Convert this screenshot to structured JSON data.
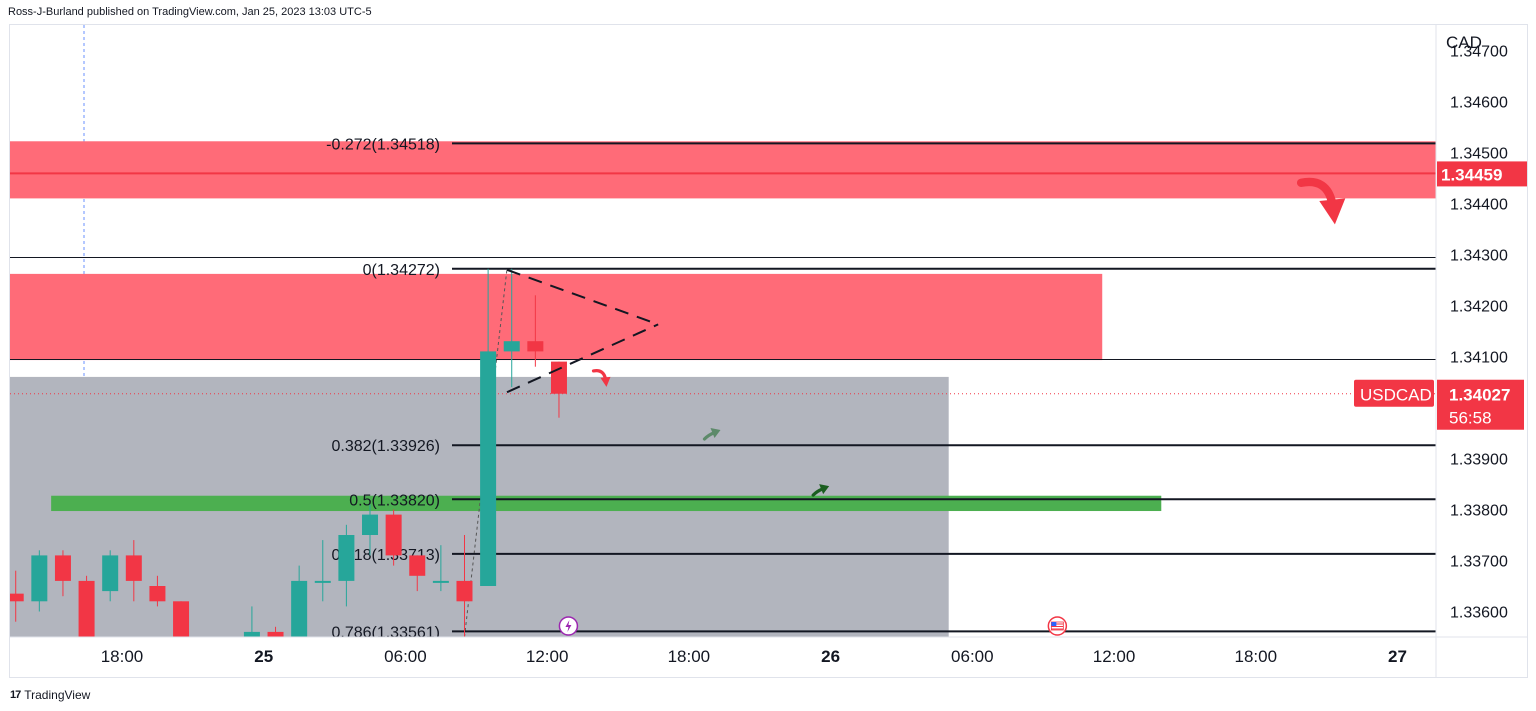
{
  "header": {
    "publisher_line": "Ross-J-Burland published on TradingView.com, Jan 25, 2023 13:03 UTC-5"
  },
  "footer": {
    "brand": "TradingView",
    "brand_mark": "17"
  },
  "colors": {
    "bull": "#26a69a",
    "bear": "#f23645",
    "resistance_zone": "#ff6b78",
    "support_line": "#4caf50",
    "gray_zone": "#b2b5be",
    "price_label": "#f23645"
  },
  "chart_data": {
    "type": "candlestick",
    "symbol": "USDCAD",
    "axis_title": "CAD",
    "last_price": "1.34027",
    "countdown": "56:58",
    "alert_price": "1.34459",
    "y_ticks": [
      "1.34700",
      "1.34600",
      "1.34500",
      "1.34400",
      "1.34300",
      "1.34200",
      "1.34100",
      "1.33900",
      "1.33800",
      "1.33700",
      "1.33600"
    ],
    "y_tick_values": [
      1.347,
      1.346,
      1.345,
      1.344,
      1.343,
      1.342,
      1.341,
      1.339,
      1.338,
      1.337,
      1.336
    ],
    "ylim": [
      1.3355,
      1.3475
    ],
    "x_ticks": [
      {
        "label": "18:00",
        "t": 0,
        "bold": false
      },
      {
        "label": "25",
        "t": 6,
        "bold": true
      },
      {
        "label": "06:00",
        "t": 12,
        "bold": false
      },
      {
        "label": "12:00",
        "t": 18,
        "bold": false
      },
      {
        "label": "18:00",
        "t": 24,
        "bold": false
      },
      {
        "label": "26",
        "t": 30,
        "bold": true
      },
      {
        "label": "06:00",
        "t": 36,
        "bold": false
      },
      {
        "label": "12:00",
        "t": 42,
        "bold": false
      },
      {
        "label": "18:00",
        "t": 48,
        "bold": false
      },
      {
        "label": "27",
        "t": 54,
        "bold": true
      }
    ],
    "candles": [
      {
        "t": -4.5,
        "o": 1.33635,
        "h": 1.3368,
        "l": 1.3358,
        "c": 1.3362
      },
      {
        "t": -3.5,
        "o": 1.3362,
        "h": 1.3372,
        "l": 1.336,
        "c": 1.3371
      },
      {
        "t": -2.5,
        "o": 1.3371,
        "h": 1.3372,
        "l": 1.3363,
        "c": 1.3366
      },
      {
        "t": -1.5,
        "o": 1.3366,
        "h": 1.3367,
        "l": 1.3355,
        "c": 1.3355
      },
      {
        "t": -0.5,
        "o": 1.3364,
        "h": 1.3372,
        "l": 1.3362,
        "c": 1.3371
      },
      {
        "t": 0.5,
        "o": 1.3371,
        "h": 1.3374,
        "l": 1.3362,
        "c": 1.3366
      },
      {
        "t": 1.5,
        "o": 1.3365,
        "h": 1.3367,
        "l": 1.3361,
        "c": 1.3362
      },
      {
        "t": 2.5,
        "o": 1.3362,
        "h": 1.3362,
        "l": 1.3355,
        "c": 1.3355
      },
      {
        "t": 5.5,
        "o": 1.3355,
        "h": 1.3361,
        "l": 1.3355,
        "c": 1.3356
      },
      {
        "t": 6.5,
        "o": 1.3356,
        "h": 1.3357,
        "l": 1.3355,
        "c": 1.3355
      },
      {
        "t": 7.5,
        "o": 1.3355,
        "h": 1.3369,
        "l": 1.3355,
        "c": 1.3366
      },
      {
        "t": 8.5,
        "o": 1.3366,
        "h": 1.3374,
        "l": 1.3362,
        "c": 1.3366
      },
      {
        "t": 9.5,
        "o": 1.3366,
        "h": 1.3377,
        "l": 1.3361,
        "c": 1.3375
      },
      {
        "t": 10.5,
        "o": 1.3375,
        "h": 1.3381,
        "l": 1.3371,
        "c": 1.3379
      },
      {
        "t": 11.5,
        "o": 1.3379,
        "h": 1.338,
        "l": 1.3369,
        "c": 1.3371
      },
      {
        "t": 12.5,
        "o": 1.3371,
        "h": 1.3371,
        "l": 1.3364,
        "c": 1.3367
      },
      {
        "t": 13.5,
        "o": 1.3366,
        "h": 1.3373,
        "l": 1.3364,
        "c": 1.3366
      },
      {
        "t": 14.5,
        "o": 1.3366,
        "h": 1.3375,
        "l": 1.3355,
        "c": 1.3362
      },
      {
        "t": 15.5,
        "o": 1.3365,
        "h": 1.34272,
        "l": 1.3365,
        "c": 1.3411
      },
      {
        "t": 16.5,
        "o": 1.3411,
        "h": 1.34272,
        "l": 1.3404,
        "c": 1.3413
      },
      {
        "t": 17.5,
        "o": 1.3413,
        "h": 1.3422,
        "l": 1.3408,
        "c": 1.3411
      },
      {
        "t": 18.5,
        "o": 1.3409,
        "h": 1.3409,
        "l": 1.3398,
        "c": 1.34027
      }
    ],
    "fib_levels": [
      {
        "ratio": "-0.272",
        "label": "-0.272(1.34518)",
        "price": 1.34518
      },
      {
        "ratio": "0",
        "label": "0(1.34272)",
        "price": 1.34272
      },
      {
        "ratio": "0.382",
        "label": "0.382(1.33926)",
        "price": 1.33926
      },
      {
        "ratio": "0.5",
        "label": "0.5(1.33820)",
        "price": 1.3382
      },
      {
        "ratio": "0.618",
        "label": "0.618(1.33713)",
        "price": 1.33713
      },
      {
        "ratio": "0.786",
        "label": "0.786(1.33561)",
        "price": 1.33561
      }
    ],
    "zones": [
      {
        "name": "upper-resistance-zone",
        "price_top": 1.34522,
        "price_bottom": 1.3441,
        "t_start": -8,
        "t_end": 58
      },
      {
        "name": "lower-resistance-zone",
        "price_top": 1.34262,
        "price_bottom": 1.34093,
        "t_start": -8,
        "t_end": 41.5
      },
      {
        "name": "gray-range-zone",
        "price_top": 1.3406,
        "price_bottom": 1.3355,
        "t_start": -8,
        "t_end": 35
      },
      {
        "name": "support-zone",
        "price_top": 1.33827,
        "price_bottom": 1.33797,
        "t_start": -3,
        "t_end": 44
      }
    ],
    "horizontal_lines": [
      {
        "name": "alert-line",
        "price": 1.34459
      },
      {
        "name": "zone-top-line",
        "price": 1.34294
      },
      {
        "name": "zone-bottom-line",
        "price": 1.34094
      }
    ],
    "triangle_lines": [
      [
        {
          "t": 16.3,
          "p": 1.3427
        },
        {
          "t": 22.7,
          "p": 1.34163
        }
      ],
      [
        {
          "t": 16.3,
          "p": 1.3403
        },
        {
          "t": 22.7,
          "p": 1.34163
        }
      ]
    ],
    "arrows": [
      {
        "name": "big-down-arrow",
        "t": 50.8,
        "p": 1.3441,
        "dir": "down",
        "color": "#f23645",
        "size": "large"
      },
      {
        "name": "small-down-arrow",
        "t": 20.3,
        "p": 1.3406,
        "dir": "down",
        "color": "#f23645",
        "size": "small"
      },
      {
        "name": "up-arrow-gray-green",
        "t": 25,
        "p": 1.3395,
        "dir": "up",
        "color": "#5d8a6a",
        "size": "small"
      },
      {
        "name": "up-arrow-dark-green",
        "t": 29.6,
        "p": 1.3384,
        "dir": "up",
        "color": "#1b5e20",
        "size": "small"
      }
    ],
    "event_markers": [
      {
        "name": "lightning-event-marker",
        "t": 18.9,
        "symbol": "⚡",
        "color": "#9c27b0"
      },
      {
        "name": "us-flag-event-marker",
        "t": 39.6,
        "symbol": "🇺🇸",
        "color": "#f23645"
      }
    ],
    "grid": false,
    "price_label_position": "right"
  }
}
